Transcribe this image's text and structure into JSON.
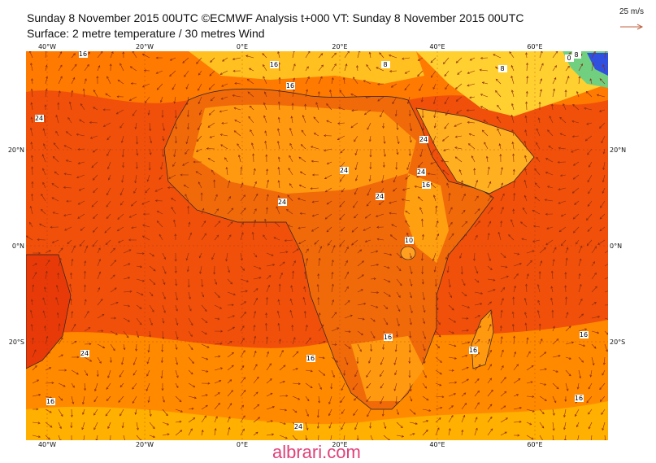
{
  "title_line1": "Sunday 8 November 2015 00UTC ©ECMWF Analysis t+000 VT: Sunday 8 November 2015 00UTC",
  "title_line2": "Surface: 2 metre temperature / 30 metres Wind",
  "wind_scale_label": "25 m/s",
  "lon_labels": [
    "40°W",
    "20°W",
    "0°E",
    "20°E",
    "40°E",
    "60°E"
  ],
  "lat_labels": [
    "20°N",
    "0°N",
    "20°S"
  ],
  "contour_labels": [
    "16",
    "16",
    "16",
    "24",
    "24",
    "24",
    "24",
    "24",
    "24",
    "16",
    "10",
    "16",
    "16",
    "16",
    "24",
    "24",
    "16",
    "16",
    "16",
    "8",
    "8",
    "0",
    "8"
  ],
  "watermark": "albrari.com",
  "colors": {
    "hot": "#f0400a",
    "warm": "#ff8c00",
    "mild": "#ffc000",
    "cool": "#ffff3a",
    "cold": "#30c0b0",
    "coldest": "#4040e0",
    "coast": "#222222",
    "arrow": "#8a2a10"
  }
}
